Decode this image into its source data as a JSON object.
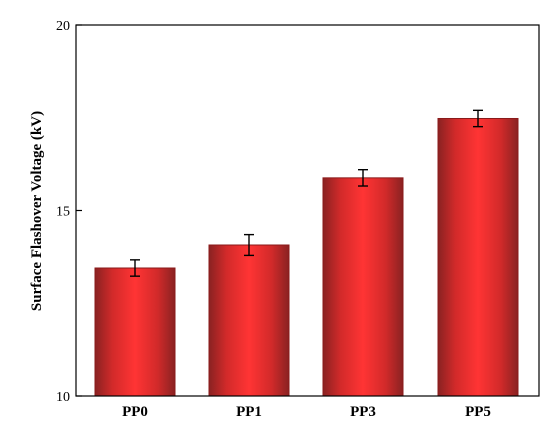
{
  "chart_data": {
    "type": "bar",
    "title": "",
    "xlabel": "",
    "ylabel": "Surface Flashover Voltage (kV)",
    "categories": [
      "PP0",
      "PP1",
      "PP3",
      "PP5"
    ],
    "values": [
      13.45,
      14.07,
      15.88,
      17.48
    ],
    "errors": [
      0.22,
      0.28,
      0.22,
      0.22
    ],
    "ylim": [
      10,
      20
    ],
    "yticks": [
      10,
      15,
      20
    ],
    "ytick_labels": [
      "10",
      "15",
      "20"
    ],
    "grid": false,
    "legend": "none",
    "bar_color": "#ff3030",
    "bar_edge_color": "#8a1a1a"
  }
}
